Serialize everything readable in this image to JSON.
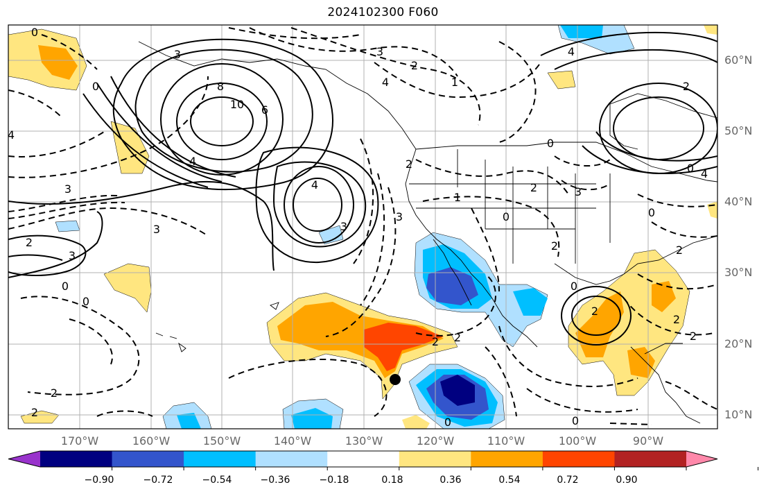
{
  "title": "2024102300 F060",
  "map": {
    "lon_labels": [
      "170°W",
      "160°W",
      "150°W",
      "140°W",
      "130°W",
      "120°W",
      "110°W",
      "100°W",
      "90°W"
    ],
    "lat_labels": [
      "60°N",
      "50°N",
      "40°N",
      "30°N",
      "20°N",
      "10°N"
    ],
    "contour_labels": [
      "0",
      "3",
      "8",
      "10",
      "6",
      "4",
      "3",
      "4",
      "3",
      "3",
      "2",
      "3",
      "0",
      "0",
      "2",
      "4",
      "2",
      "4",
      "0",
      "3",
      "2",
      "3",
      "2",
      "2",
      "0",
      "0",
      "0",
      "2",
      "2",
      "0",
      "4",
      "2",
      "1",
      "2",
      "3",
      "1",
      "0",
      "2",
      "0",
      "0",
      "2",
      "2",
      "2",
      "4"
    ]
  },
  "colorbar": {
    "ticks": [
      "−0.90",
      "−0.72",
      "−0.54",
      "−0.36",
      "−0.18",
      "0.18",
      "0.36",
      "0.54",
      "0.72",
      "0.90"
    ],
    "colors": [
      "#9933cc",
      "#000080",
      "#3355cc",
      "#00bfff",
      "#b0e0ff",
      "#ffffff",
      "#ffe680",
      "#ffa500",
      "#ff4500",
      "#b22222",
      "#ff88aa"
    ]
  },
  "marker": "black-dot"
}
